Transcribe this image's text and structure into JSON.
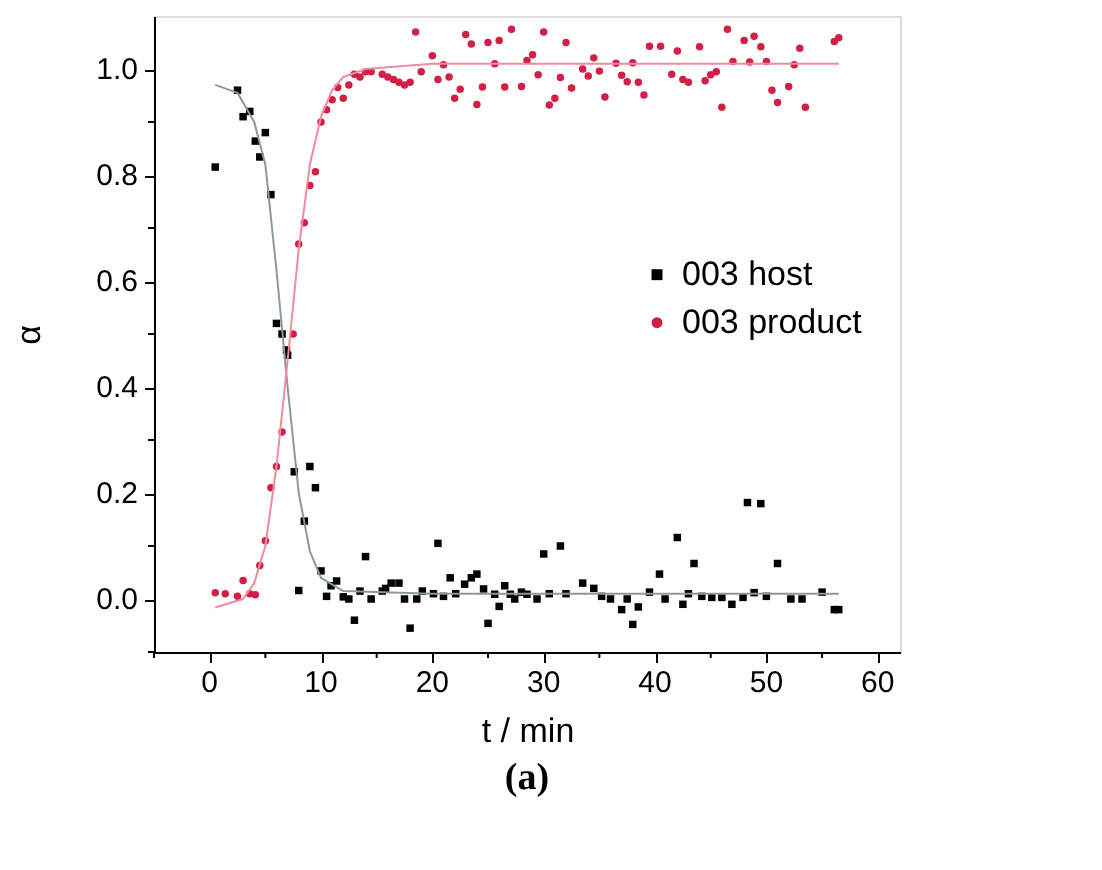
{
  "chart_data": {
    "type": "scatter",
    "xlabel": "t / min",
    "ylabel": "α",
    "annotations": [
      "(a)"
    ],
    "xlim": [
      -5,
      62
    ],
    "ylim": [
      -0.1,
      1.1
    ],
    "xticks": [
      0,
      {
        "value": 5,
        "label": null
      },
      10,
      {
        "value": 15,
        "label": null
      },
      20,
      {
        "value": 25,
        "label": null
      },
      30,
      {
        "value": 35,
        "label": null
      },
      40,
      {
        "value": 45,
        "label": null
      },
      50,
      {
        "value": 55,
        "label": null
      },
      60,
      {
        "value": -5,
        "label": null
      }
    ],
    "yticks": [
      {
        "value": -0.1,
        "label": null
      },
      {
        "value": 0,
        "label": "0.0"
      },
      {
        "value": 0.1,
        "label": null
      },
      {
        "value": 0.2,
        "label": "0.2"
      },
      {
        "value": 0.3,
        "label": null
      },
      {
        "value": 0.4,
        "label": "0.4"
      },
      {
        "value": 0.5,
        "label": null
      },
      {
        "value": 0.6,
        "label": "0.6"
      },
      {
        "value": 0.7,
        "label": null
      },
      {
        "value": 0.8,
        "label": "0.8"
      },
      {
        "value": 0.9,
        "label": null
      },
      {
        "value": 1.0,
        "label": "1.0"
      }
    ],
    "grid": false,
    "legend": "right",
    "series": [
      {
        "name": "003 host",
        "marker": "square",
        "color": "#000000",
        "x": [
          0.5,
          2.5,
          3.0,
          3.6,
          4.1,
          4.5,
          5.0,
          5.5,
          6.0,
          6.5,
          6.9,
          7.0,
          7.6,
          8.0,
          8.5,
          9.0,
          9.5,
          10.0,
          10.5,
          10.9,
          11.4,
          12.0,
          12.5,
          13.0,
          13.5,
          14.0,
          14.5,
          15.5,
          15.8,
          16.3,
          17.0,
          17.5,
          18.0,
          18.6,
          19.1,
          20.1,
          20.5,
          21.0,
          21.6,
          22.1,
          22.9,
          23.5,
          24.0,
          24.6,
          25.0,
          25.6,
          26.0,
          26.5,
          27.0,
          27.4,
          28.0,
          28.5,
          29.4,
          30.0,
          30.5,
          31.5,
          32.0,
          33.5,
          34.5,
          35.2,
          36.0,
          37.0,
          37.5,
          38.0,
          38.5,
          39.5,
          40.4,
          40.9,
          42.0,
          42.5,
          43.0,
          43.5,
          44.2,
          45.1,
          46.0,
          46.9,
          47.9,
          48.3,
          48.9,
          49.5,
          50.0,
          51.0,
          52.2,
          53.2,
          55.0,
          56.1,
          56.5
        ],
        "values": [
          0.815,
          0.96,
          0.91,
          0.92,
          0.864,
          0.834,
          0.88,
          0.763,
          0.52,
          0.5,
          0.47,
          0.46,
          0.24,
          0.016,
          0.147,
          0.25,
          0.21,
          0.053,
          0.005,
          0.025,
          0.034,
          0.004,
          0.0,
          -0.04,
          0.015,
          0.08,
          0.0,
          0.015,
          0.02,
          0.03,
          0.03,
          0.0,
          -0.055,
          0.0,
          0.015,
          0.01,
          0.105,
          0.005,
          0.04,
          0.01,
          0.028,
          0.04,
          0.047,
          0.019,
          -0.046,
          0.009,
          -0.014,
          0.025,
          0.009,
          0.0,
          0.013,
          0.009,
          0.0,
          0.085,
          0.01,
          0.1,
          0.01,
          0.03,
          0.02,
          0.005,
          0.0,
          -0.02,
          0.0,
          -0.048,
          -0.015,
          0.013,
          0.047,
          0.0,
          0.116,
          -0.01,
          0.01,
          0.067,
          0.005,
          0.003,
          0.003,
          -0.01,
          0.003,
          0.182,
          0.012,
          0.18,
          0.005,
          0.067,
          0.0,
          0.0,
          0.013,
          -0.02,
          -0.02
        ]
      },
      {
        "name": "003 product",
        "marker": "circle",
        "color": "#d21f46",
        "x": [
          0.5,
          1.4,
          2.5,
          3.0,
          3.6,
          4.1,
          4.5,
          5.0,
          5.5,
          6.0,
          6.5,
          7.5,
          8.0,
          8.5,
          9.0,
          9.5,
          10.0,
          10.5,
          11.0,
          11.5,
          12.0,
          12.5,
          13.0,
          13.5,
          14.0,
          14.5,
          15.5,
          16.0,
          16.5,
          17.0,
          17.5,
          18.0,
          18.5,
          19.0,
          20.0,
          20.5,
          21.0,
          21.5,
          22.0,
          22.5,
          23.0,
          23.5,
          24.0,
          24.5,
          25.0,
          25.6,
          26.0,
          26.5,
          27.1,
          28.0,
          28.5,
          29.0,
          29.5,
          30.0,
          30.5,
          31.0,
          31.5,
          32.0,
          32.5,
          33.5,
          34.0,
          34.5,
          35.0,
          35.5,
          36.5,
          37.0,
          37.5,
          38.0,
          38.5,
          39.0,
          39.5,
          40.5,
          41.5,
          42.0,
          42.5,
          43.0,
          44.0,
          44.5,
          45.0,
          45.5,
          46.0,
          46.5,
          47.0,
          48.0,
          48.5,
          48.9,
          49.5,
          50.0,
          50.5,
          51.0,
          52.0,
          52.5,
          53.0,
          53.5,
          56.1,
          56.5
        ],
        "values": [
          0.012,
          0.01,
          0.005,
          0.035,
          0.01,
          0.008,
          0.063,
          0.11,
          0.21,
          0.25,
          0.315,
          0.5,
          0.67,
          0.71,
          0.78,
          0.806,
          0.9,
          0.923,
          0.942,
          0.965,
          0.945,
          0.97,
          0.99,
          0.985,
          0.995,
          0.995,
          0.99,
          0.985,
          0.98,
          0.975,
          0.97,
          0.975,
          1.07,
          0.995,
          1.025,
          0.98,
          1.008,
          0.985,
          0.945,
          0.962,
          1.065,
          1.047,
          0.933,
          0.966,
          1.05,
          1.01,
          1.054,
          0.966,
          1.075,
          0.967,
          1.016,
          1.027,
          0.989,
          1.07,
          0.932,
          0.945,
          0.984,
          1.05,
          0.964,
          1.0,
          0.987,
          1.021,
          0.996,
          0.947,
          1.011,
          0.988,
          0.976,
          1.012,
          0.975,
          0.951,
          1.043,
          1.043,
          0.99,
          1.034,
          0.98,
          0.975,
          1.042,
          0.978,
          0.989,
          0.995,
          0.928,
          1.075,
          1.014,
          1.054,
          1.013,
          1.062,
          1.042,
          1.014,
          0.96,
          0.937,
          0.967,
          1.008,
          1.039,
          0.928,
          1.052,
          1.059
        ]
      },
      {
        "type": "line",
        "color": "#8a9a9a",
        "x": [
          0.5,
          2.5,
          4,
          5,
          6,
          7,
          8,
          9,
          10,
          12,
          20,
          56.5
        ],
        "values": [
          0.97,
          0.955,
          0.9,
          0.82,
          0.62,
          0.4,
          0.2,
          0.09,
          0.04,
          0.015,
          0.01,
          0.01
        ]
      },
      {
        "type": "line",
        "color": "#f28a9e",
        "x": [
          0.5,
          3,
          4,
          5,
          6,
          7,
          8,
          9,
          10,
          11,
          12,
          14,
          20,
          56.5
        ],
        "values": [
          -0.016,
          0.0,
          0.03,
          0.1,
          0.25,
          0.45,
          0.66,
          0.82,
          0.91,
          0.96,
          0.985,
          1.0,
          1.01,
          1.01
        ]
      }
    ]
  }
}
